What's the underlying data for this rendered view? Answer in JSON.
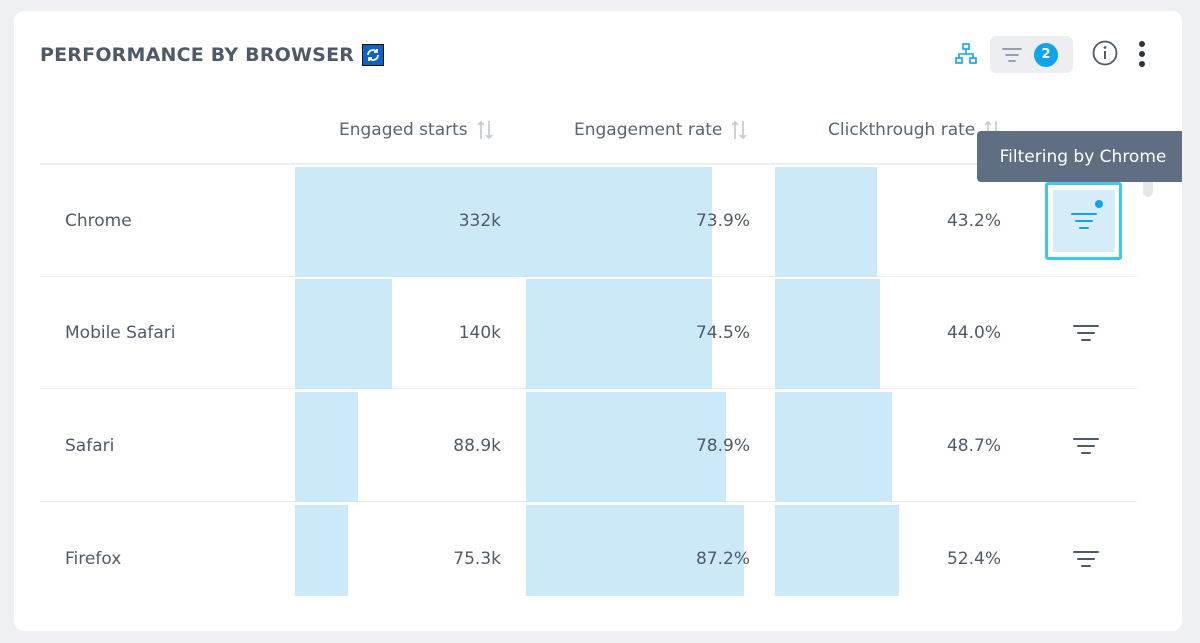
{
  "widget": {
    "title": "PERFORMANCE BY BROWSER",
    "filter_count": "2"
  },
  "columns": [
    "Engaged starts",
    "Engagement rate",
    "Clickthrough rate"
  ],
  "tooltip": "Filtering by Chrome",
  "rows": [
    {
      "browser": "Chrome",
      "engaged_starts": "332k",
      "engagement_rate": "73.9%",
      "clickthrough_rate": "43.2%",
      "engaged_starts_fill": 1.0,
      "engagement_rate_fill": 0.8,
      "clickthrough_rate_fill": 0.43
    },
    {
      "browser": "Mobile Safari",
      "engaged_starts": "140k",
      "engagement_rate": "74.5%",
      "clickthrough_rate": "44.0%",
      "engaged_starts_fill": 0.42,
      "engagement_rate_fill": 0.8,
      "clickthrough_rate_fill": 0.44
    },
    {
      "browser": "Safari",
      "engaged_starts": "88.9k",
      "engagement_rate": "78.9%",
      "clickthrough_rate": "48.7%",
      "engaged_starts_fill": 0.27,
      "engagement_rate_fill": 0.86,
      "clickthrough_rate_fill": 0.49
    },
    {
      "browser": "Firefox",
      "engaged_starts": "75.3k",
      "engagement_rate": "87.2%",
      "clickthrough_rate": "52.4%",
      "engaged_starts_fill": 0.23,
      "engagement_rate_fill": 0.94,
      "clickthrough_rate_fill": 0.52
    }
  ],
  "colors": {
    "accent": "#0ea5ea",
    "bar_fill": "#cce9f9",
    "tooltip_bg": "#5f6e83",
    "active_border": "#3cc8e6"
  },
  "icons": {
    "refresh": "refresh-icon",
    "hierarchy": "hierarchy-icon",
    "filter": "filter-icon",
    "info": "info-icon",
    "menu": "kebab-menu-icon",
    "sort": "sort-icon"
  }
}
